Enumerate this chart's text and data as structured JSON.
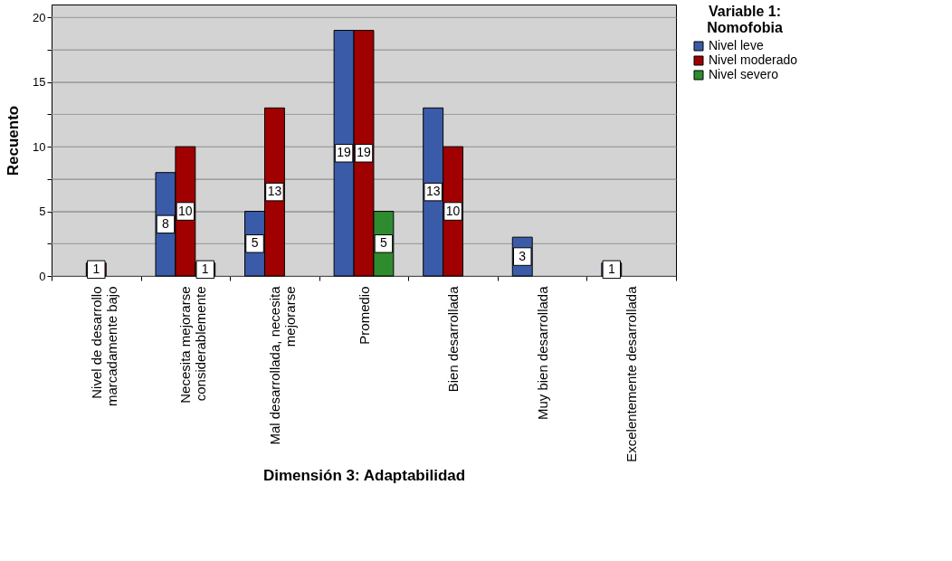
{
  "chart_data": {
    "type": "bar",
    "xlabel": "Dimensión 3: Adaptabilidad",
    "ylabel": "Recuento",
    "legend_title": "Variable 1: Nomofobia",
    "categories": [
      "Nivel de desarrollo marcadamente bajo",
      "Necesita mejorarse considerablemente",
      "Mal desarrollada, necesita mejorarse",
      "Promedio",
      "Bien desarrollada",
      "Muy bien desarrollada",
      "Excelentemente desarrollada"
    ],
    "series": [
      {
        "name": "Nivel leve",
        "color": "#3a5ba8",
        "values": [
          null,
          8,
          5,
          19,
          13,
          3,
          1
        ]
      },
      {
        "name": "Nivel moderado",
        "color": "#a00000",
        "values": [
          1,
          10,
          13,
          19,
          10,
          null,
          null
        ]
      },
      {
        "name": "Nivel severo",
        "color": "#2e8b2e",
        "values": [
          null,
          1,
          null,
          5,
          null,
          null,
          null
        ]
      }
    ],
    "ylim": [
      0,
      21
    ],
    "yticks": [
      0,
      {
        "value": 2.5,
        "label": null
      },
      5,
      {
        "value": 7.5,
        "label": null
      },
      10,
      {
        "value": 12.5,
        "label": null
      },
      15,
      {
        "value": 17.5,
        "label": null
      },
      20
    ],
    "grid": "y",
    "legend": "top right",
    "data_labels": true
  }
}
